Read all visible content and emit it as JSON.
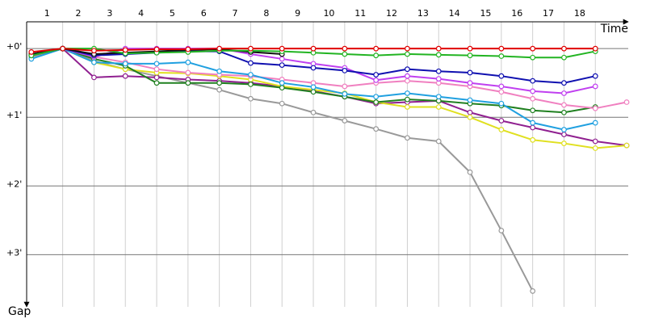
{
  "chart_data": {
    "type": "line",
    "xlabel": "Time",
    "ylabel": "Gap",
    "x": [
      0,
      1,
      2,
      3,
      4,
      5,
      6,
      7,
      8,
      9,
      10,
      11,
      12,
      13,
      14,
      15,
      16,
      17,
      18,
      19
    ],
    "xlim": [
      -0.15,
      19.05
    ],
    "xticks": [
      1,
      2,
      3,
      4,
      5,
      6,
      7,
      8,
      9,
      10,
      11,
      12,
      13,
      14,
      15,
      16,
      17,
      18
    ],
    "ylim": [
      -0.39,
      3.76
    ],
    "y_inverted": true,
    "yticks": [
      {
        "value": 0,
        "label": "+0'"
      },
      {
        "value": 1,
        "label": "+1'"
      },
      {
        "value": 2,
        "label": "+2'"
      },
      {
        "value": 3,
        "label": "+3'"
      }
    ],
    "grid": true,
    "series": [
      {
        "color": "#999999",
        "values": [
          0.12,
          0,
          0.18,
          0.3,
          0.4,
          0.5,
          0.6,
          0.73,
          0.8,
          0.93,
          1.05,
          1.17,
          1.3,
          1.35,
          1.8,
          2.65,
          3.53,
          null,
          null,
          null
        ]
      },
      {
        "color": "#902090",
        "values": [
          0.1,
          0,
          0.42,
          0.4,
          0.42,
          0.45,
          0.47,
          0.5,
          0.55,
          0.62,
          0.7,
          0.8,
          0.78,
          0.76,
          0.93,
          1.05,
          1.15,
          1.25,
          1.35,
          1.41
        ]
      },
      {
        "color": "#e0e020",
        "values": [
          0.1,
          0,
          0.2,
          0.3,
          0.35,
          0.36,
          0.4,
          0.45,
          0.55,
          0.6,
          0.65,
          0.78,
          0.85,
          0.85,
          1.0,
          1.18,
          1.33,
          1.38,
          1.45,
          1.41
        ]
      },
      {
        "color": "#208020",
        "values": [
          0.1,
          0,
          0.15,
          0.25,
          0.5,
          0.5,
          0.5,
          0.52,
          0.57,
          0.63,
          0.7,
          0.78,
          0.74,
          0.76,
          0.8,
          0.83,
          0.9,
          0.93,
          0.85,
          null
        ]
      },
      {
        "color": "#f080c0",
        "values": [
          0.1,
          0,
          0.12,
          0.2,
          0.3,
          0.35,
          0.38,
          0.4,
          0.45,
          0.5,
          0.55,
          0.5,
          0.47,
          0.5,
          0.55,
          0.63,
          0.73,
          0.82,
          0.87,
          0.78
        ]
      },
      {
        "color": "#20a0e0",
        "values": [
          0.15,
          0,
          0.2,
          0.22,
          0.22,
          0.2,
          0.33,
          0.38,
          0.5,
          0.56,
          0.66,
          0.7,
          0.65,
          0.7,
          0.75,
          0.8,
          1.08,
          1.18,
          1.08,
          null
        ]
      },
      {
        "color": "#c040f0",
        "values": [
          0.08,
          0,
          0.12,
          0,
          0,
          0,
          0,
          0.08,
          0.15,
          0.22,
          0.28,
          0.46,
          0.4,
          0.44,
          0.5,
          0.55,
          0.62,
          0.65,
          0.55,
          null
        ]
      },
      {
        "color": "#1010b0",
        "values": [
          0.1,
          0,
          0.1,
          0.08,
          0.06,
          0.04,
          0.04,
          0.21,
          0.24,
          0.28,
          0.32,
          0.38,
          0.3,
          0.33,
          0.35,
          0.4,
          0.47,
          0.5,
          0.4,
          null
        ]
      },
      {
        "color": "#111111",
        "values": [
          0.08,
          0,
          0.08,
          0.06,
          0.04,
          0.02,
          0.01,
          0.05,
          0.08,
          null,
          null,
          null,
          null,
          null,
          null,
          null,
          null,
          null,
          null,
          null
        ]
      },
      {
        "color": "#22b422",
        "values": [
          0.1,
          0,
          0,
          0.07,
          0.06,
          0.05,
          0.03,
          0.03,
          0.04,
          0.06,
          0.08,
          0.1,
          0.08,
          0.09,
          0.1,
          0.11,
          0.13,
          0.13,
          0.04,
          null
        ]
      },
      {
        "color": "#e00000",
        "values": [
          0.05,
          0,
          0.03,
          0.02,
          0.01,
          0.01,
          0,
          0,
          0,
          0,
          0,
          0,
          0,
          0,
          0,
          0,
          0,
          0,
          0,
          null
        ]
      }
    ]
  }
}
